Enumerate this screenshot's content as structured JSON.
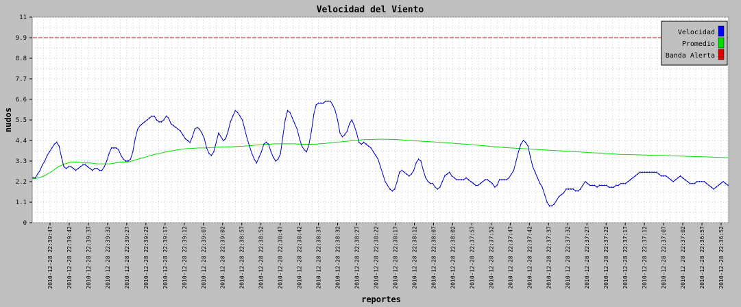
{
  "chart_data": {
    "type": "line",
    "title": "Velocidad del Viento",
    "xlabel": "reportes",
    "ylabel": "nudos",
    "ylim": [
      0,
      11
    ],
    "y_ticks": [
      "0",
      "1.1",
      "2.2",
      "3.3",
      "4.4",
      "5.5",
      "6.6",
      "7.7",
      "8.8",
      "9.9",
      "11"
    ],
    "x_ticks": [
      "2010-12-28 22:39:47",
      "2010-12-28 22:39:42",
      "2010-12-28 22:39:37",
      "2010-12-28 22:39:32",
      "2010-12-28 22:39:27",
      "2010-12-28 22:39:22",
      "2010-12-28 22:39:17",
      "2010-12-28 22:39:12",
      "2010-12-28 22:39:07",
      "2010-12-28 22:39:02",
      "2010-12-28 22:38:57",
      "2010-12-28 22:38:52",
      "2010-12-28 22:38:47",
      "2010-12-28 22:38:42",
      "2010-12-28 22:38:37",
      "2010-12-28 22:38:32",
      "2010-12-28 22:38:27",
      "2010-12-28 22:38:22",
      "2010-12-28 22:38:17",
      "2010-12-28 22:38:12",
      "2010-12-28 22:38:07",
      "2010-12-28 22:38:02",
      "2010-12-28 22:37:57",
      "2010-12-28 22:37:52",
      "2010-12-28 22:37:47",
      "2010-12-28 22:37:42",
      "2010-12-28 22:37:37",
      "2010-12-28 22:37:32",
      "2010-12-28 22:37:27",
      "2010-12-28 22:37:22",
      "2010-12-28 22:37:17",
      "2010-12-28 22:37:12",
      "2010-12-28 22:37:07",
      "2010-12-28 22:37:02",
      "2010-12-28 22:36:57",
      "2010-12-28 22:36:52"
    ],
    "grid": true,
    "legend_position": "top-right",
    "series": [
      {
        "name": "Velocidad",
        "color": "#0000cc",
        "values": [
          2.4,
          2.4,
          2.6,
          2.8,
          3.1,
          3.3,
          3.6,
          3.8,
          4.0,
          4.2,
          4.3,
          4.1,
          3.5,
          3.0,
          2.9,
          3.0,
          3.0,
          2.9,
          2.8,
          2.9,
          3.0,
          3.1,
          3.1,
          3.0,
          2.9,
          2.8,
          2.9,
          2.9,
          2.8,
          2.8,
          3.0,
          3.3,
          3.7,
          4.0,
          4.0,
          4.0,
          3.9,
          3.6,
          3.4,
          3.3,
          3.3,
          3.4,
          3.8,
          4.5,
          5.0,
          5.2,
          5.3,
          5.4,
          5.5,
          5.6,
          5.7,
          5.7,
          5.5,
          5.4,
          5.4,
          5.5,
          5.7,
          5.6,
          5.3,
          5.2,
          5.1,
          5.0,
          4.9,
          4.7,
          4.5,
          4.4,
          4.3,
          4.6,
          5.0,
          5.1,
          5.0,
          4.8,
          4.5,
          4.0,
          3.7,
          3.6,
          3.8,
          4.3,
          4.8,
          4.6,
          4.4,
          4.5,
          4.9,
          5.4,
          5.7,
          6.0,
          5.9,
          5.7,
          5.5,
          5.0,
          4.5,
          4.1,
          3.7,
          3.4,
          3.2,
          3.5,
          3.8,
          4.2,
          4.3,
          4.2,
          3.8,
          3.5,
          3.3,
          3.4,
          3.7,
          4.6,
          5.5,
          6.0,
          5.9,
          5.6,
          5.3,
          5.0,
          4.5,
          4.1,
          3.9,
          3.8,
          4.2,
          4.9,
          5.8,
          6.3,
          6.4,
          6.4,
          6.4,
          6.5,
          6.5,
          6.5,
          6.3,
          6.0,
          5.5,
          4.8,
          4.6,
          4.7,
          4.9,
          5.3,
          5.5,
          5.2,
          4.8,
          4.3,
          4.2,
          4.3,
          4.2,
          4.1,
          4.0,
          3.8,
          3.6,
          3.4,
          3.0,
          2.6,
          2.2,
          2.0,
          1.8,
          1.7,
          1.8,
          2.2,
          2.7,
          2.8,
          2.7,
          2.6,
          2.5,
          2.6,
          2.8,
          3.2,
          3.4,
          3.3,
          2.8,
          2.4,
          2.2,
          2.1,
          2.1,
          1.9,
          1.8,
          1.9,
          2.2,
          2.5,
          2.6,
          2.7,
          2.5,
          2.4,
          2.3,
          2.3,
          2.3,
          2.3,
          2.4,
          2.3,
          2.2,
          2.1,
          2.0,
          2.0,
          2.1,
          2.2,
          2.3,
          2.3,
          2.2,
          2.1,
          1.9,
          2.0,
          2.3,
          2.3,
          2.3,
          2.3,
          2.4,
          2.6,
          2.8,
          3.3,
          3.8,
          4.2,
          4.4,
          4.3,
          4.1,
          3.5,
          3.0,
          2.7,
          2.4,
          2.1,
          1.9,
          1.5,
          1.1,
          0.9,
          0.9,
          1.0,
          1.2,
          1.4,
          1.5,
          1.6,
          1.8,
          1.8,
          1.8,
          1.8,
          1.7,
          1.7,
          1.8,
          2.0,
          2.2,
          2.1,
          2.0,
          2.0,
          2.0,
          1.9,
          2.0,
          2.0,
          2.0,
          2.0,
          1.9,
          1.9,
          1.9,
          2.0,
          2.0,
          2.1,
          2.1,
          2.1,
          2.2,
          2.3,
          2.4,
          2.5,
          2.6,
          2.7,
          2.7,
          2.7,
          2.7,
          2.7,
          2.7,
          2.7,
          2.7,
          2.6,
          2.5,
          2.5,
          2.5,
          2.4,
          2.3,
          2.2,
          2.3,
          2.4,
          2.5,
          2.4,
          2.3,
          2.2,
          2.1,
          2.1,
          2.1,
          2.2,
          2.2,
          2.2,
          2.2,
          2.1,
          2.0,
          1.9,
          1.8,
          1.9,
          2.0,
          2.1,
          2.2,
          2.1,
          2.0
        ]
      },
      {
        "name": "Promedio",
        "color": "#00e000",
        "values": [
          2.35,
          2.4,
          2.55,
          2.75,
          3.0,
          3.15,
          3.25,
          3.25,
          3.2,
          3.2,
          3.15,
          3.15,
          3.15,
          3.2,
          3.25,
          3.25,
          3.35,
          3.45,
          3.55,
          3.65,
          3.72,
          3.8,
          3.86,
          3.92,
          3.96,
          3.98,
          4.0,
          4.0,
          4.02,
          4.04,
          4.06,
          4.06,
          4.08,
          4.1,
          4.12,
          4.15,
          4.18,
          4.2,
          4.22,
          4.22,
          4.22,
          4.22,
          4.2,
          4.2,
          4.2,
          4.22,
          4.25,
          4.3,
          4.32,
          4.35,
          4.38,
          4.42,
          4.45,
          4.45,
          4.47,
          4.47,
          4.46,
          4.45,
          4.43,
          4.4,
          4.38,
          4.36,
          4.34,
          4.32,
          4.3,
          4.28,
          4.25,
          4.22,
          4.2,
          4.17,
          4.14,
          4.11,
          4.08,
          4.05,
          4.02,
          4.0,
          3.98,
          3.96,
          3.94,
          3.92,
          3.9,
          3.88,
          3.86,
          3.84,
          3.82,
          3.8,
          3.78,
          3.76,
          3.74,
          3.72,
          3.7,
          3.68,
          3.66,
          3.65,
          3.64,
          3.63,
          3.62,
          3.61,
          3.6,
          3.6,
          3.58,
          3.57,
          3.56,
          3.55,
          3.54,
          3.53,
          3.52,
          3.5,
          3.49,
          3.48
        ]
      },
      {
        "name": "Banda Alerta",
        "color": "#cc0000",
        "values": [
          9.9,
          9.9
        ]
      }
    ]
  }
}
